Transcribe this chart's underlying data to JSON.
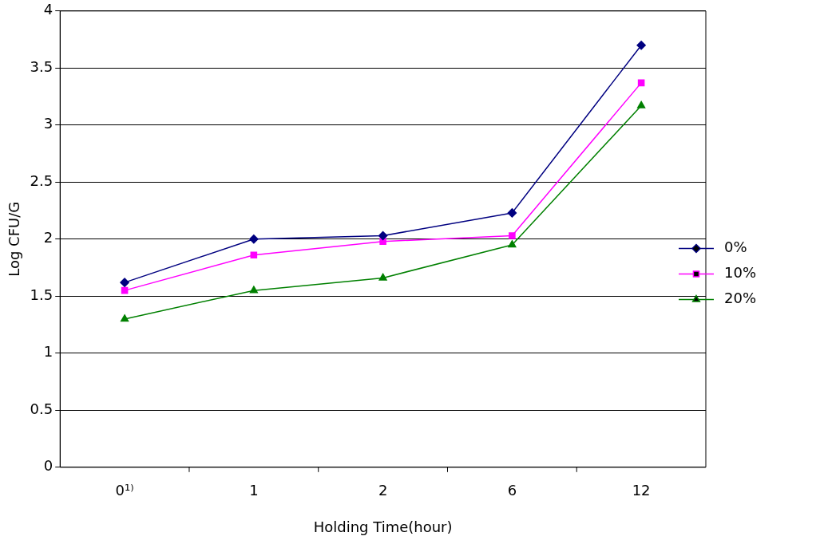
{
  "chart_data": {
    "type": "line",
    "xlabel": "Holding Time(hour)",
    "ylabel": "Log CFU/G",
    "categories": [
      "0¹⁾",
      "1",
      "2",
      "6",
      "12"
    ],
    "series": [
      {
        "name": "0%",
        "color": "#000080",
        "marker": "diamond",
        "values": [
          1.62,
          2.0,
          2.03,
          2.23,
          3.7
        ]
      },
      {
        "name": "10%",
        "color": "#ff00ff",
        "marker": "square",
        "values": [
          1.55,
          1.86,
          1.98,
          2.03,
          3.37
        ]
      },
      {
        "name": "20%",
        "color": "#008000",
        "marker": "triangle",
        "values": [
          1.3,
          1.55,
          1.66,
          1.95,
          3.17
        ]
      }
    ],
    "ylim": [
      0,
      4
    ],
    "yticks": [
      0,
      0.5,
      1,
      1.5,
      2,
      2.5,
      3,
      3.5,
      4
    ],
    "grid": "y",
    "legend": "right"
  }
}
